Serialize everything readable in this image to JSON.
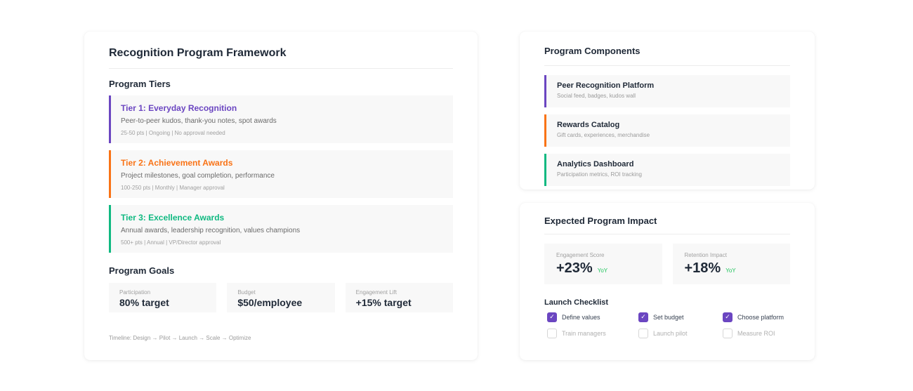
{
  "framework": {
    "title": "Recognition Program Framework",
    "tiers_title": "Program Tiers",
    "tiers": [
      {
        "name": "Tier 1: Everyday Recognition",
        "desc": "Peer-to-peer kudos, thank-you notes, spot awards",
        "meta": "25-50 pts | Ongoing | No approval needed",
        "color": "#6b46c1"
      },
      {
        "name": "Tier 2: Achievement Awards",
        "desc": "Project milestones, goal completion, performance",
        "meta": "100-250 pts | Monthly | Manager approval",
        "color": "#f97316"
      },
      {
        "name": "Tier 3: Excellence Awards",
        "desc": "Annual awards, leadership recognition, values champions",
        "meta": "500+ pts | Annual | VP/Director approval",
        "color": "#10b981"
      }
    ],
    "goals_title": "Program Goals",
    "goals": [
      {
        "label": "Participation",
        "value": "80% target"
      },
      {
        "label": "Budget",
        "value": "$50/employee"
      },
      {
        "label": "Engagement Lift",
        "value": "+15% target"
      }
    ],
    "timeline": "Timeline: Design → Pilot → Launch → Scale → Optimize"
  },
  "components": {
    "title": "Program Components",
    "items": [
      {
        "name": "Peer Recognition Platform",
        "desc": "Social feed, badges, kudos wall",
        "color": "#6b46c1"
      },
      {
        "name": "Rewards Catalog",
        "desc": "Gift cards, experiences, merchandise",
        "color": "#f97316"
      },
      {
        "name": "Analytics Dashboard",
        "desc": "Participation metrics, ROI tracking",
        "color": "#10b981"
      }
    ]
  },
  "impact": {
    "title": "Expected Program Impact",
    "metrics": [
      {
        "label": "Engagement Score",
        "value": "+23%",
        "trend": "YoY"
      },
      {
        "label": "Retention Impact",
        "value": "+18%",
        "trend": "YoY"
      }
    ],
    "checklist_title": "Launch Checklist",
    "checklist": [
      {
        "label": "Define values",
        "checked": true
      },
      {
        "label": "Set budget",
        "checked": true
      },
      {
        "label": "Choose platform",
        "checked": true
      },
      {
        "label": "Train managers",
        "checked": false
      },
      {
        "label": "Launch pilot",
        "checked": false
      },
      {
        "label": "Measure ROI",
        "checked": false
      }
    ],
    "check_glyph": "✓"
  },
  "colors": {
    "accent": "#6b46c1",
    "orange": "#f97316",
    "green": "#10b981",
    "trend": "#22c55e"
  }
}
